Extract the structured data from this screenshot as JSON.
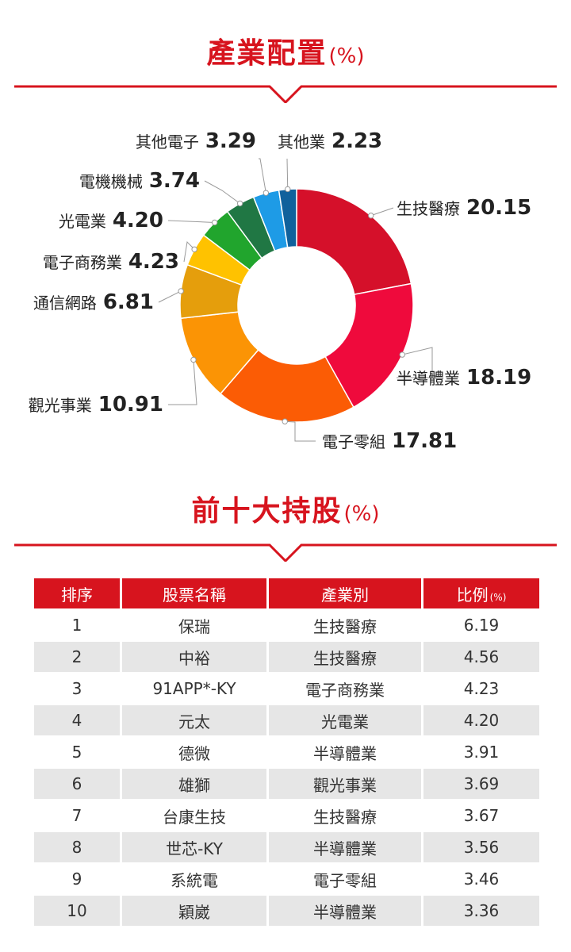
{
  "sections": {
    "allocation_title": "產業配置",
    "allocation_unit": "(%)",
    "holdings_title": "前十大持股",
    "holdings_unit": "(%)"
  },
  "colors": {
    "accent": "#d7141e",
    "row_alt": "#e6e6e6"
  },
  "chart_data": {
    "type": "pie",
    "title": "產業配置(%)",
    "donut": true,
    "slices": [
      {
        "label": "生技醫療",
        "value": 20.15,
        "value_text": "20.15",
        "color": "#d5102a"
      },
      {
        "label": "半導體業",
        "value": 18.19,
        "value_text": "18.19",
        "color": "#ef0a3c"
      },
      {
        "label": "電子零組",
        "value": 17.81,
        "value_text": "17.81",
        "color": "#fb5c05"
      },
      {
        "label": "觀光事業",
        "value": 10.91,
        "value_text": "10.91",
        "color": "#fb9405"
      },
      {
        "label": "通信網路",
        "value": 6.81,
        "value_text": "6.81",
        "color": "#e59e0c"
      },
      {
        "label": "電子商務業",
        "value": 4.23,
        "value_text": "4.23",
        "color": "#ffc200"
      },
      {
        "label": "光電業",
        "value": 4.2,
        "value_text": "4.20",
        "color": "#21a52d"
      },
      {
        "label": "電機機械",
        "value": 3.74,
        "value_text": "3.74",
        "color": "#207744"
      },
      {
        "label": "其他電子",
        "value": 3.29,
        "value_text": "3.29",
        "color": "#1e9be6"
      },
      {
        "label": "其他業",
        "value": 2.23,
        "value_text": "2.23",
        "color": "#10619c"
      }
    ]
  },
  "table": {
    "headers": {
      "rank": "排序",
      "name": "股票名稱",
      "industry": "產業別",
      "ratio": "比例",
      "ratio_unit": "(%)"
    },
    "rows": [
      {
        "rank": "1",
        "name": "保瑞",
        "industry": "生技醫療",
        "ratio": "6.19"
      },
      {
        "rank": "2",
        "name": "中裕",
        "industry": "生技醫療",
        "ratio": "4.56"
      },
      {
        "rank": "3",
        "name": "91APP*-KY",
        "industry": "電子商務業",
        "ratio": "4.23"
      },
      {
        "rank": "4",
        "name": "元太",
        "industry": "光電業",
        "ratio": "4.20"
      },
      {
        "rank": "5",
        "name": "德微",
        "industry": "半導體業",
        "ratio": "3.91"
      },
      {
        "rank": "6",
        "name": "雄獅",
        "industry": "觀光事業",
        "ratio": "3.69"
      },
      {
        "rank": "7",
        "name": "台康生技",
        "industry": "生技醫療",
        "ratio": "3.67"
      },
      {
        "rank": "8",
        "name": "世芯-KY",
        "industry": "半導體業",
        "ratio": "3.56"
      },
      {
        "rank": "9",
        "name": "系統電",
        "industry": "電子零組",
        "ratio": "3.46"
      },
      {
        "rank": "10",
        "name": "穎崴",
        "industry": "半導體業",
        "ratio": "3.36"
      }
    ]
  }
}
